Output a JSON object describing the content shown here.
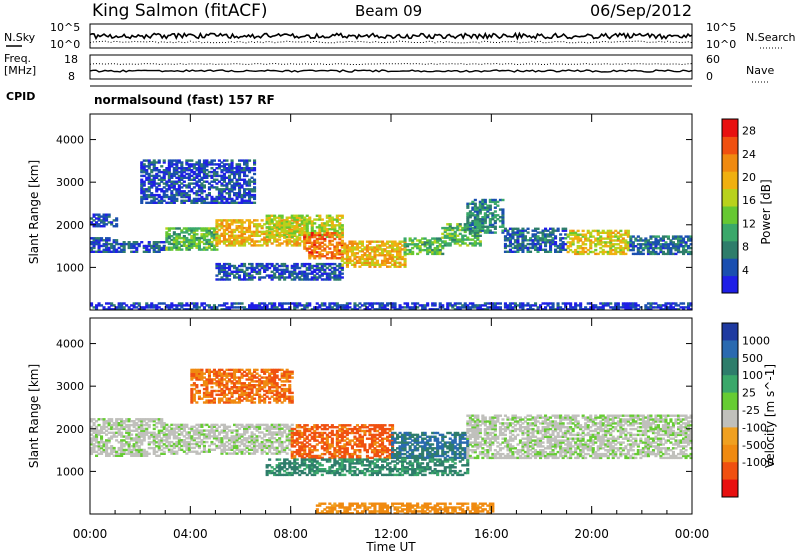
{
  "header": {
    "station": "King Salmon (fitACF)",
    "beam": "Beam 09",
    "date": "06/Sep/2012"
  },
  "top_panels": {
    "nsky_label": "N.Sky",
    "nsearch_label": "N.Search",
    "sky_ticks": [
      "10^5",
      "10^0"
    ],
    "search_ticks": [
      "10^5",
      "10^0"
    ],
    "freq_label_1": "Freq.",
    "freq_label_2": "[MHz]",
    "freq_ticks": [
      "18",
      "8"
    ],
    "nave_label": "Nave",
    "nave_ticks": [
      "60",
      "0"
    ],
    "cpid_label": "CPID",
    "cpid_value": "normalsound (fast) 157 RF"
  },
  "chart_data": [
    {
      "type": "heatmap",
      "title": "",
      "xlabel": "Time UT",
      "ylabel": "Slant Range [km]",
      "x_ticks": [
        "00:00",
        "04:00",
        "08:00",
        "12:00",
        "16:00",
        "20:00",
        "00:00"
      ],
      "y_ticks": [
        1000,
        2000,
        3000,
        4000
      ],
      "xlim": [
        0,
        24
      ],
      "ylim": [
        0,
        4600
      ],
      "colorbar": {
        "label": "Power [dB]",
        "ticks": [
          4,
          8,
          12,
          16,
          20,
          24,
          28
        ],
        "range": [
          0,
          30
        ],
        "colors": [
          "#1f1fe6",
          "#1a4fb0",
          "#2e7d6b",
          "#3aa86a",
          "#66c832",
          "#b8d21c",
          "#f0b010",
          "#f08a10",
          "#f05010",
          "#e81010"
        ]
      },
      "echo_regions": [
        {
          "t_start": 0.0,
          "t_end": 1.2,
          "range_km": [
            1350,
            1700
          ],
          "value": 4
        },
        {
          "t_start": 0.0,
          "t_end": 1.0,
          "range_km": [
            1950,
            2250
          ],
          "value": 4
        },
        {
          "t_start": 1.2,
          "t_end": 3.0,
          "range_km": [
            1350,
            1600
          ],
          "value": 5
        },
        {
          "t_start": 2.0,
          "t_end": 6.5,
          "range_km": [
            2500,
            3500
          ],
          "value": 4
        },
        {
          "t_start": 3.0,
          "t_end": 5.0,
          "range_km": [
            1400,
            1900
          ],
          "value": 12
        },
        {
          "t_start": 5.0,
          "t_end": 8.5,
          "range_km": [
            1500,
            2100
          ],
          "value": 20
        },
        {
          "t_start": 7.0,
          "t_end": 10.0,
          "range_km": [
            1700,
            2200
          ],
          "value": 16
        },
        {
          "t_start": 8.5,
          "t_end": 10.0,
          "range_km": [
            1200,
            1800
          ],
          "value": 24
        },
        {
          "t_start": 10.0,
          "t_end": 12.5,
          "range_km": [
            1000,
            1600
          ],
          "value": 20
        },
        {
          "t_start": 12.5,
          "t_end": 14.0,
          "range_km": [
            1300,
            1700
          ],
          "value": 12
        },
        {
          "t_start": 14.0,
          "t_end": 15.5,
          "range_km": [
            1500,
            2000
          ],
          "value": 12
        },
        {
          "t_start": 15.0,
          "t_end": 16.5,
          "range_km": [
            1800,
            2600
          ],
          "value": 8
        },
        {
          "t_start": 16.5,
          "t_end": 19.0,
          "range_km": [
            1350,
            1900
          ],
          "value": 6
        },
        {
          "t_start": 19.0,
          "t_end": 21.5,
          "range_km": [
            1300,
            1850
          ],
          "value": 18
        },
        {
          "t_start": 21.5,
          "t_end": 24.0,
          "range_km": [
            1300,
            1750
          ],
          "value": 6
        },
        {
          "t_start": 5.0,
          "t_end": 10.0,
          "range_km": [
            700,
            1100
          ],
          "value": 4
        },
        {
          "t_start": 0.0,
          "t_end": 24.0,
          "range_km": [
            0,
            150
          ],
          "value": 3
        }
      ]
    },
    {
      "type": "heatmap",
      "title": "",
      "xlabel": "Time UT",
      "ylabel": "Slant Range [km]",
      "x_ticks": [
        "00:00",
        "04:00",
        "08:00",
        "12:00",
        "16:00",
        "20:00",
        "00:00"
      ],
      "y_ticks": [
        1000,
        2000,
        3000,
        4000
      ],
      "xlim": [
        0,
        24
      ],
      "ylim": [
        0,
        4600
      ],
      "colorbar": {
        "label": "Velocity [m s^-1]",
        "ticks": [
          "1000",
          "500",
          "100",
          "25",
          "-25",
          "-100",
          "-500",
          "-1000"
        ],
        "colors": [
          "#1f3aa0",
          "#2a6ab0",
          "#2e7d6b",
          "#3aa86a",
          "#66cc33",
          "#c0c0bc",
          "#f0a020",
          "#f08a10",
          "#f05010",
          "#e81010"
        ]
      },
      "echo_regions": [
        {
          "t_start": 0.0,
          "t_end": 3.0,
          "range_km": [
            1350,
            2250
          ],
          "value": 0
        },
        {
          "t_start": 3.0,
          "t_end": 8.0,
          "range_km": [
            1400,
            2100
          ],
          "value": 0
        },
        {
          "t_start": 4.0,
          "t_end": 8.0,
          "range_km": [
            2600,
            3400
          ],
          "value": -300
        },
        {
          "t_start": 8.0,
          "t_end": 12.0,
          "range_km": [
            1300,
            2100
          ],
          "value": -400
        },
        {
          "t_start": 12.0,
          "t_end": 15.0,
          "range_km": [
            1300,
            1900
          ],
          "value": 300
        },
        {
          "t_start": 7.0,
          "t_end": 15.0,
          "range_km": [
            900,
            1300
          ],
          "value": 80
        },
        {
          "t_start": 15.0,
          "t_end": 24.0,
          "range_km": [
            1300,
            2300
          ],
          "value": 0
        },
        {
          "t_start": 9.0,
          "t_end": 16.0,
          "range_km": [
            0,
            250
          ],
          "value": -100
        }
      ]
    }
  ]
}
